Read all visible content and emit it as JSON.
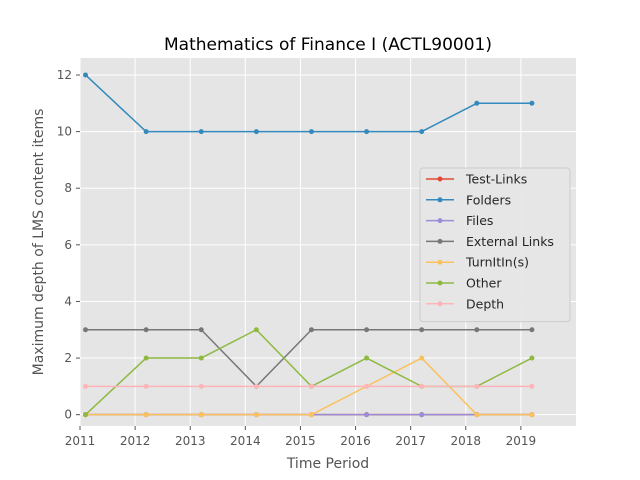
{
  "chart_data": {
    "type": "line",
    "title": "Mathematics of Finance I (ACTL90001)",
    "xlabel": "Time Period",
    "ylabel": "Maximum depth of LMS content items",
    "xlim": [
      2011,
      2020
    ],
    "ylim": [
      -0.4,
      12.6
    ],
    "xticks": [
      2011,
      2012,
      2013,
      2014,
      2015,
      2016,
      2017,
      2018,
      2019
    ],
    "yticks": [
      0,
      2,
      4,
      6,
      8,
      10,
      12
    ],
    "x": [
      2011.1,
      2012.2,
      2013.2,
      2014.2,
      2015.2,
      2016.2,
      2017.2,
      2018.2,
      2019.2
    ],
    "grid": true,
    "legend_position": "center-right",
    "series": [
      {
        "name": "Test-Links",
        "color": "#E24A33",
        "values": [
          0,
          0,
          0,
          0,
          0,
          0,
          0,
          0,
          0
        ]
      },
      {
        "name": "Folders",
        "color": "#348ABD",
        "values": [
          12,
          10,
          10,
          10,
          10,
          10,
          10,
          11,
          11
        ]
      },
      {
        "name": "Files",
        "color": "#988ED5",
        "values": [
          0,
          0,
          0,
          0,
          0,
          0,
          0,
          0,
          0
        ]
      },
      {
        "name": "External Links",
        "color": "#777777",
        "values": [
          3,
          3,
          3,
          1,
          3,
          3,
          3,
          3,
          3
        ]
      },
      {
        "name": "TurnItIn(s)",
        "color": "#FBC15E",
        "values": [
          0,
          0,
          0,
          0,
          0,
          1,
          2,
          0,
          0
        ]
      },
      {
        "name": "Other",
        "color": "#8EBA42",
        "values": [
          0,
          2,
          2,
          3,
          1,
          2,
          1,
          1,
          2
        ]
      },
      {
        "name": "Depth",
        "color": "#FFB5B8",
        "values": [
          1,
          1,
          1,
          1,
          1,
          1,
          1,
          1,
          1
        ]
      }
    ]
  }
}
